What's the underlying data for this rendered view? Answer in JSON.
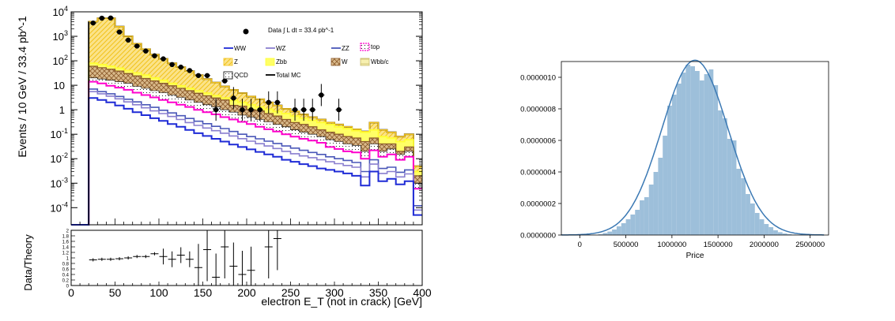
{
  "chart_data": [
    {
      "type": "histogram",
      "panel": "physics-stacked-histogram",
      "xlabel": "electron E_T (not in crack) [GeV]",
      "ylabel": "Events / 10 GeV / 33.4 pb^-1",
      "yscale": "log",
      "xlim": [
        0,
        400
      ],
      "ylim": [
        2e-05,
        10000
      ],
      "x_ticks": [
        "0",
        "50",
        "100",
        "150",
        "200",
        "250",
        "300",
        "350",
        "400"
      ],
      "y_ticks": [
        "10^-4",
        "10^-3",
        "10^-2",
        "10^-1",
        "1",
        "10",
        "10^2",
        "10^3",
        "10^4"
      ],
      "lumi_label": "Data ∫ L dt = 33.4 pb^-1",
      "legend": [
        {
          "key": "ww",
          "label": "WW",
          "color": "#1f2bd6"
        },
        {
          "key": "wz",
          "label": "WZ",
          "color": "#8a7fcf"
        },
        {
          "key": "zz",
          "label": "ZZ",
          "color": "#4a57b8"
        },
        {
          "key": "top",
          "label": "top",
          "color": "#ff00cc"
        },
        {
          "key": "z",
          "label": "Z",
          "color": "#f2c21a"
        },
        {
          "key": "zbb",
          "label": "Zbb",
          "color": "#ffff33"
        },
        {
          "key": "w",
          "label": "W",
          "color": "#8b5a2b"
        },
        {
          "key": "wbb",
          "label": "Wbb/c",
          "color": "#c8b96a"
        },
        {
          "key": "qcd",
          "label": "QCD",
          "color": "#000000"
        },
        {
          "key": "total",
          "label": "Total MC",
          "color": "#000000"
        }
      ],
      "bin_edges": [
        0,
        10,
        20,
        30,
        40,
        50,
        60,
        70,
        80,
        90,
        100,
        110,
        120,
        130,
        140,
        150,
        160,
        170,
        180,
        190,
        200,
        210,
        220,
        230,
        240,
        250,
        260,
        270,
        280,
        290,
        300,
        310,
        320,
        330,
        340,
        350,
        360,
        370,
        380,
        390,
        400
      ],
      "series": [
        {
          "key": "ww",
          "values": [
            0,
            0,
            3,
            2.5,
            2,
            1.5,
            1.1,
            0.8,
            0.6,
            0.45,
            0.35,
            0.26,
            0.2,
            0.15,
            0.11,
            0.085,
            0.065,
            0.05,
            0.038,
            0.03,
            0.024,
            0.019,
            0.015,
            0.012,
            0.009,
            0.0075,
            0.006,
            0.005,
            0.004,
            0.0035,
            0.003,
            0.0025,
            0.002,
            0.0008,
            0.003,
            0.0012,
            0.0015,
            0.0009,
            0.0012,
            5e-05
          ]
        },
        {
          "key": "wz",
          "values": [
            0,
            0,
            5.5,
            4.5,
            3.6,
            2.8,
            2.1,
            1.6,
            1.2,
            0.9,
            0.7,
            0.53,
            0.4,
            0.3,
            0.23,
            0.18,
            0.14,
            0.11,
            0.085,
            0.066,
            0.052,
            0.041,
            0.033,
            0.026,
            0.02,
            0.016,
            0.013,
            0.011,
            0.009,
            0.0075,
            0.0063,
            0.0053,
            0.0045,
            0.0018,
            0.006,
            0.0025,
            0.003,
            0.0018,
            0.0024,
            8e-05
          ]
        },
        {
          "key": "zz",
          "values": [
            0,
            0,
            7,
            5.5,
            4.5,
            3.5,
            2.7,
            2.1,
            1.6,
            1.25,
            0.95,
            0.74,
            0.57,
            0.44,
            0.34,
            0.27,
            0.21,
            0.17,
            0.13,
            0.1,
            0.08,
            0.065,
            0.052,
            0.042,
            0.033,
            0.027,
            0.022,
            0.018,
            0.015,
            0.012,
            0.01,
            0.0085,
            0.007,
            0.003,
            0.009,
            0.004,
            0.0045,
            0.0028,
            0.0035,
            0.00012
          ]
        },
        {
          "key": "top",
          "values": [
            0,
            0,
            14,
            12,
            9.5,
            8,
            6.5,
            5,
            4,
            3.2,
            2.5,
            2,
            1.6,
            1.3,
            1,
            0.8,
            0.65,
            0.5,
            0.4,
            0.32,
            0.26,
            0.2,
            0.16,
            0.13,
            0.1,
            0.08,
            0.065,
            0.055,
            0.045,
            0.03,
            0.025,
            0.02,
            0.018,
            0.01,
            0.022,
            0.012,
            0.015,
            0.009,
            0.012,
            0.0006
          ]
        },
        {
          "key": "qcd",
          "values": [
            0,
            0,
            20,
            18,
            16,
            14,
            12,
            9,
            7.5,
            6,
            5,
            4,
            3.2,
            2.5,
            2,
            1.6,
            1.3,
            1,
            0.8,
            0.6,
            0.5,
            0.4,
            0.32,
            0.25,
            0.2,
            0.15,
            0.12,
            0.1,
            0.08,
            0.06,
            0.05,
            0.04,
            0.035,
            0.02,
            0.04,
            0.02,
            0.025,
            0.015,
            0.02,
            0.001
          ]
        },
        {
          "key": "w",
          "values": [
            0,
            0,
            60,
            52,
            45,
            38,
            30,
            24,
            19,
            15,
            12,
            9.5,
            7.5,
            6,
            4.7,
            3.7,
            3,
            2.5,
            1.5,
            1.4,
            1.0,
            0.9,
            0.7,
            0.55,
            0.4,
            0.3,
            0.25,
            0.2,
            0.15,
            0.12,
            0.1,
            0.08,
            0.07,
            0.05,
            0.07,
            0.04,
            0.04,
            0.02,
            0.03,
            0.002
          ]
        },
        {
          "key": "zbb",
          "values": [
            0,
            0,
            80,
            70,
            60,
            50,
            40,
            32,
            26,
            20,
            16,
            12,
            9.5,
            7.5,
            6,
            4.8,
            3.8,
            3,
            2.4,
            2,
            1.6,
            1.3,
            1.05,
            0.85,
            0.7,
            0.55,
            0.45,
            0.37,
            0.3,
            0.25,
            0.2,
            0.17,
            0.14,
            0.12,
            0.15,
            0.08,
            0.07,
            0.05,
            0.06,
            0.003
          ]
        },
        {
          "key": "z",
          "values": [
            0,
            0,
            4000,
            5500,
            5500,
            2500,
            1000,
            500,
            300,
            180,
            120,
            80,
            55,
            38,
            26,
            18,
            13,
            9,
            6.5,
            4.8,
            3.5,
            2.7,
            2,
            1.5,
            1.1,
            0.85,
            0.65,
            0.5,
            0.4,
            0.3,
            0.25,
            0.2,
            0.16,
            0.13,
            0.3,
            0.15,
            0.12,
            0.08,
            0.1,
            0.005
          ]
        },
        {
          "key": "wbb",
          "values": [
            0,
            0,
            4000,
            5500,
            5500,
            2500,
            1000,
            500,
            300,
            180,
            120,
            80,
            55,
            38,
            26,
            18,
            13,
            9,
            6.5,
            4.8,
            3.5,
            2.7,
            2,
            1.5,
            1.1,
            0.85,
            0.65,
            0.5,
            0.4,
            0.3,
            0.25,
            0.2,
            0.16,
            0.13,
            0.3,
            0.15,
            0.12,
            0.08,
            0.1,
            0.005
          ]
        },
        {
          "key": "total",
          "values": [
            0,
            0,
            4000,
            5500,
            5500,
            2500,
            1000,
            500,
            300,
            180,
            120,
            80,
            55,
            38,
            26,
            18,
            13,
            9,
            6.5,
            4.8,
            3.5,
            2.7,
            2,
            1.5,
            1.1,
            0.85,
            0.65,
            0.5,
            0.4,
            0.3,
            0.25,
            0.2,
            0.16,
            0.13,
            0.3,
            0.15,
            0.12,
            0.08,
            0.1,
            0.005
          ]
        }
      ],
      "data_points": [
        {
          "x": 25,
          "y": 3500
        },
        {
          "x": 35,
          "y": 5500
        },
        {
          "x": 45,
          "y": 5600
        },
        {
          "x": 55,
          "y": 1500
        },
        {
          "x": 65,
          "y": 700
        },
        {
          "x": 75,
          "y": 400
        },
        {
          "x": 85,
          "y": 250
        },
        {
          "x": 95,
          "y": 160
        },
        {
          "x": 105,
          "y": 120
        },
        {
          "x": 115,
          "y": 70
        },
        {
          "x": 125,
          "y": 55
        },
        {
          "x": 135,
          "y": 40
        },
        {
          "x": 145,
          "y": 25
        },
        {
          "x": 155,
          "y": 25
        },
        {
          "x": 165,
          "y": 1
        },
        {
          "x": 175,
          "y": 15
        },
        {
          "x": 185,
          "y": 3
        },
        {
          "x": 195,
          "y": 1
        },
        {
          "x": 205,
          "y": 1
        },
        {
          "x": 215,
          "y": 1
        },
        {
          "x": 225,
          "y": 2
        },
        {
          "x": 235,
          "y": 2
        },
        {
          "x": 255,
          "y": 1
        },
        {
          "x": 265,
          "y": 1
        },
        {
          "x": 275,
          "y": 1
        },
        {
          "x": 285,
          "y": 4
        },
        {
          "x": 305,
          "y": 1
        }
      ],
      "ratio": {
        "ylabel": "Data/Theory",
        "ylim": [
          0,
          2
        ],
        "y_ticks": [
          "0",
          "0.2",
          "0.4",
          "0.6",
          "0.8",
          "1",
          "1.2",
          "1.4",
          "1.6",
          "1.8",
          "2"
        ],
        "points": [
          {
            "x": 25,
            "y": 0.93
          },
          {
            "x": 35,
            "y": 0.95
          },
          {
            "x": 45,
            "y": 0.95
          },
          {
            "x": 55,
            "y": 0.97
          },
          {
            "x": 65,
            "y": 1.0
          },
          {
            "x": 75,
            "y": 1.05
          },
          {
            "x": 85,
            "y": 1.05
          },
          {
            "x": 95,
            "y": 1.15
          },
          {
            "x": 105,
            "y": 1.05
          },
          {
            "x": 115,
            "y": 0.95
          },
          {
            "x": 125,
            "y": 1.1
          },
          {
            "x": 135,
            "y": 0.95
          },
          {
            "x": 145,
            "y": 0.65
          },
          {
            "x": 155,
            "y": 1.3
          },
          {
            "x": 165,
            "y": 0.3
          },
          {
            "x": 175,
            "y": 1.4
          },
          {
            "x": 185,
            "y": 0.7
          },
          {
            "x": 195,
            "y": 0.4
          },
          {
            "x": 205,
            "y": 0.55
          },
          {
            "x": 225,
            "y": 1.4
          },
          {
            "x": 235,
            "y": 1.7
          }
        ]
      }
    },
    {
      "type": "histogram",
      "panel": "price-distribution",
      "xlabel": "Price",
      "ylabel": "",
      "xlim": [
        -200000,
        2700000
      ],
      "ylim": [
        0,
        1.1e-06
      ],
      "x_ticks": [
        "0",
        "500000",
        "1000000",
        "1500000",
        "2000000",
        "2500000"
      ],
      "y_ticks": [
        "0.0000000",
        "0.0000002",
        "0.0000004",
        "0.0000006",
        "0.0000008",
        "0.0000010"
      ],
      "bar_color": "#9dbfda",
      "kde_color": "#3b79b4",
      "bars": [
        {
          "x0": 150000,
          "x1": 200000,
          "y": 2e-09
        },
        {
          "x0": 200000,
          "x1": 250000,
          "y": 5e-09
        },
        {
          "x0": 250000,
          "x1": 300000,
          "y": 1.3e-08
        },
        {
          "x0": 300000,
          "x1": 350000,
          "y": 2.2e-08
        },
        {
          "x0": 350000,
          "x1": 400000,
          "y": 3.5e-08
        },
        {
          "x0": 400000,
          "x1": 450000,
          "y": 5.5e-08
        },
        {
          "x0": 450000,
          "x1": 500000,
          "y": 7.5e-08
        },
        {
          "x0": 500000,
          "x1": 550000,
          "y": 1e-07
        },
        {
          "x0": 550000,
          "x1": 600000,
          "y": 1.3e-07
        },
        {
          "x0": 600000,
          "x1": 650000,
          "y": 1.6e-07
        },
        {
          "x0": 650000,
          "x1": 700000,
          "y": 2.2e-07
        },
        {
          "x0": 700000,
          "x1": 750000,
          "y": 2.4e-07
        },
        {
          "x0": 750000,
          "x1": 800000,
          "y": 3.2e-07
        },
        {
          "x0": 800000,
          "x1": 850000,
          "y": 4e-07
        },
        {
          "x0": 850000,
          "x1": 900000,
          "y": 4.9e-07
        },
        {
          "x0": 900000,
          "x1": 950000,
          "y": 6.3e-07
        },
        {
          "x0": 950000,
          "x1": 1000000,
          "y": 8.2e-07
        },
        {
          "x0": 1000000,
          "x1": 1050000,
          "y": 8.9e-07
        },
        {
          "x0": 1050000,
          "x1": 1100000,
          "y": 9.6e-07
        },
        {
          "x0": 1100000,
          "x1": 1150000,
          "y": 1.03e-06
        },
        {
          "x0": 1150000,
          "x1": 1200000,
          "y": 1.08e-06
        },
        {
          "x0": 1200000,
          "x1": 1250000,
          "y": 1.07e-06
        },
        {
          "x0": 1250000,
          "x1": 1300000,
          "y": 1.04e-06
        },
        {
          "x0": 1300000,
          "x1": 1350000,
          "y": 9.8e-07
        },
        {
          "x0": 1350000,
          "x1": 1400000,
          "y": 1.02e-06
        },
        {
          "x0": 1400000,
          "x1": 1450000,
          "y": 1.05e-06
        },
        {
          "x0": 1450000,
          "x1": 1500000,
          "y": 9.5e-07
        },
        {
          "x0": 1500000,
          "x1": 1550000,
          "y": 7.9e-07
        },
        {
          "x0": 1550000,
          "x1": 1600000,
          "y": 7.4e-07
        },
        {
          "x0": 1600000,
          "x1": 1650000,
          "y": 6.1e-07
        },
        {
          "x0": 1650000,
          "x1": 1700000,
          "y": 6e-07
        },
        {
          "x0": 1700000,
          "x1": 1750000,
          "y": 4.2e-07
        },
        {
          "x0": 1750000,
          "x1": 1800000,
          "y": 3.6e-07
        },
        {
          "x0": 1800000,
          "x1": 1850000,
          "y": 2.6e-07
        },
        {
          "x0": 1850000,
          "x1": 1900000,
          "y": 2e-07
        },
        {
          "x0": 1900000,
          "x1": 1950000,
          "y": 1.4e-07
        },
        {
          "x0": 1950000,
          "x1": 2000000,
          "y": 1e-07
        },
        {
          "x0": 2000000,
          "x1": 2050000,
          "y": 7e-08
        },
        {
          "x0": 2050000,
          "x1": 2100000,
          "y": 5e-08
        },
        {
          "x0": 2100000,
          "x1": 2150000,
          "y": 3e-08
        },
        {
          "x0": 2150000,
          "x1": 2200000,
          "y": 1.8e-08
        },
        {
          "x0": 2200000,
          "x1": 2250000,
          "y": 1e-08
        },
        {
          "x0": 2250000,
          "x1": 2300000,
          "y": 6e-09
        },
        {
          "x0": 2300000,
          "x1": 2350000,
          "y": 3e-09
        }
      ],
      "kde": {
        "mean": 1250000,
        "sd": 360000,
        "xmin": -200000,
        "xmax": 2650000
      }
    }
  ]
}
